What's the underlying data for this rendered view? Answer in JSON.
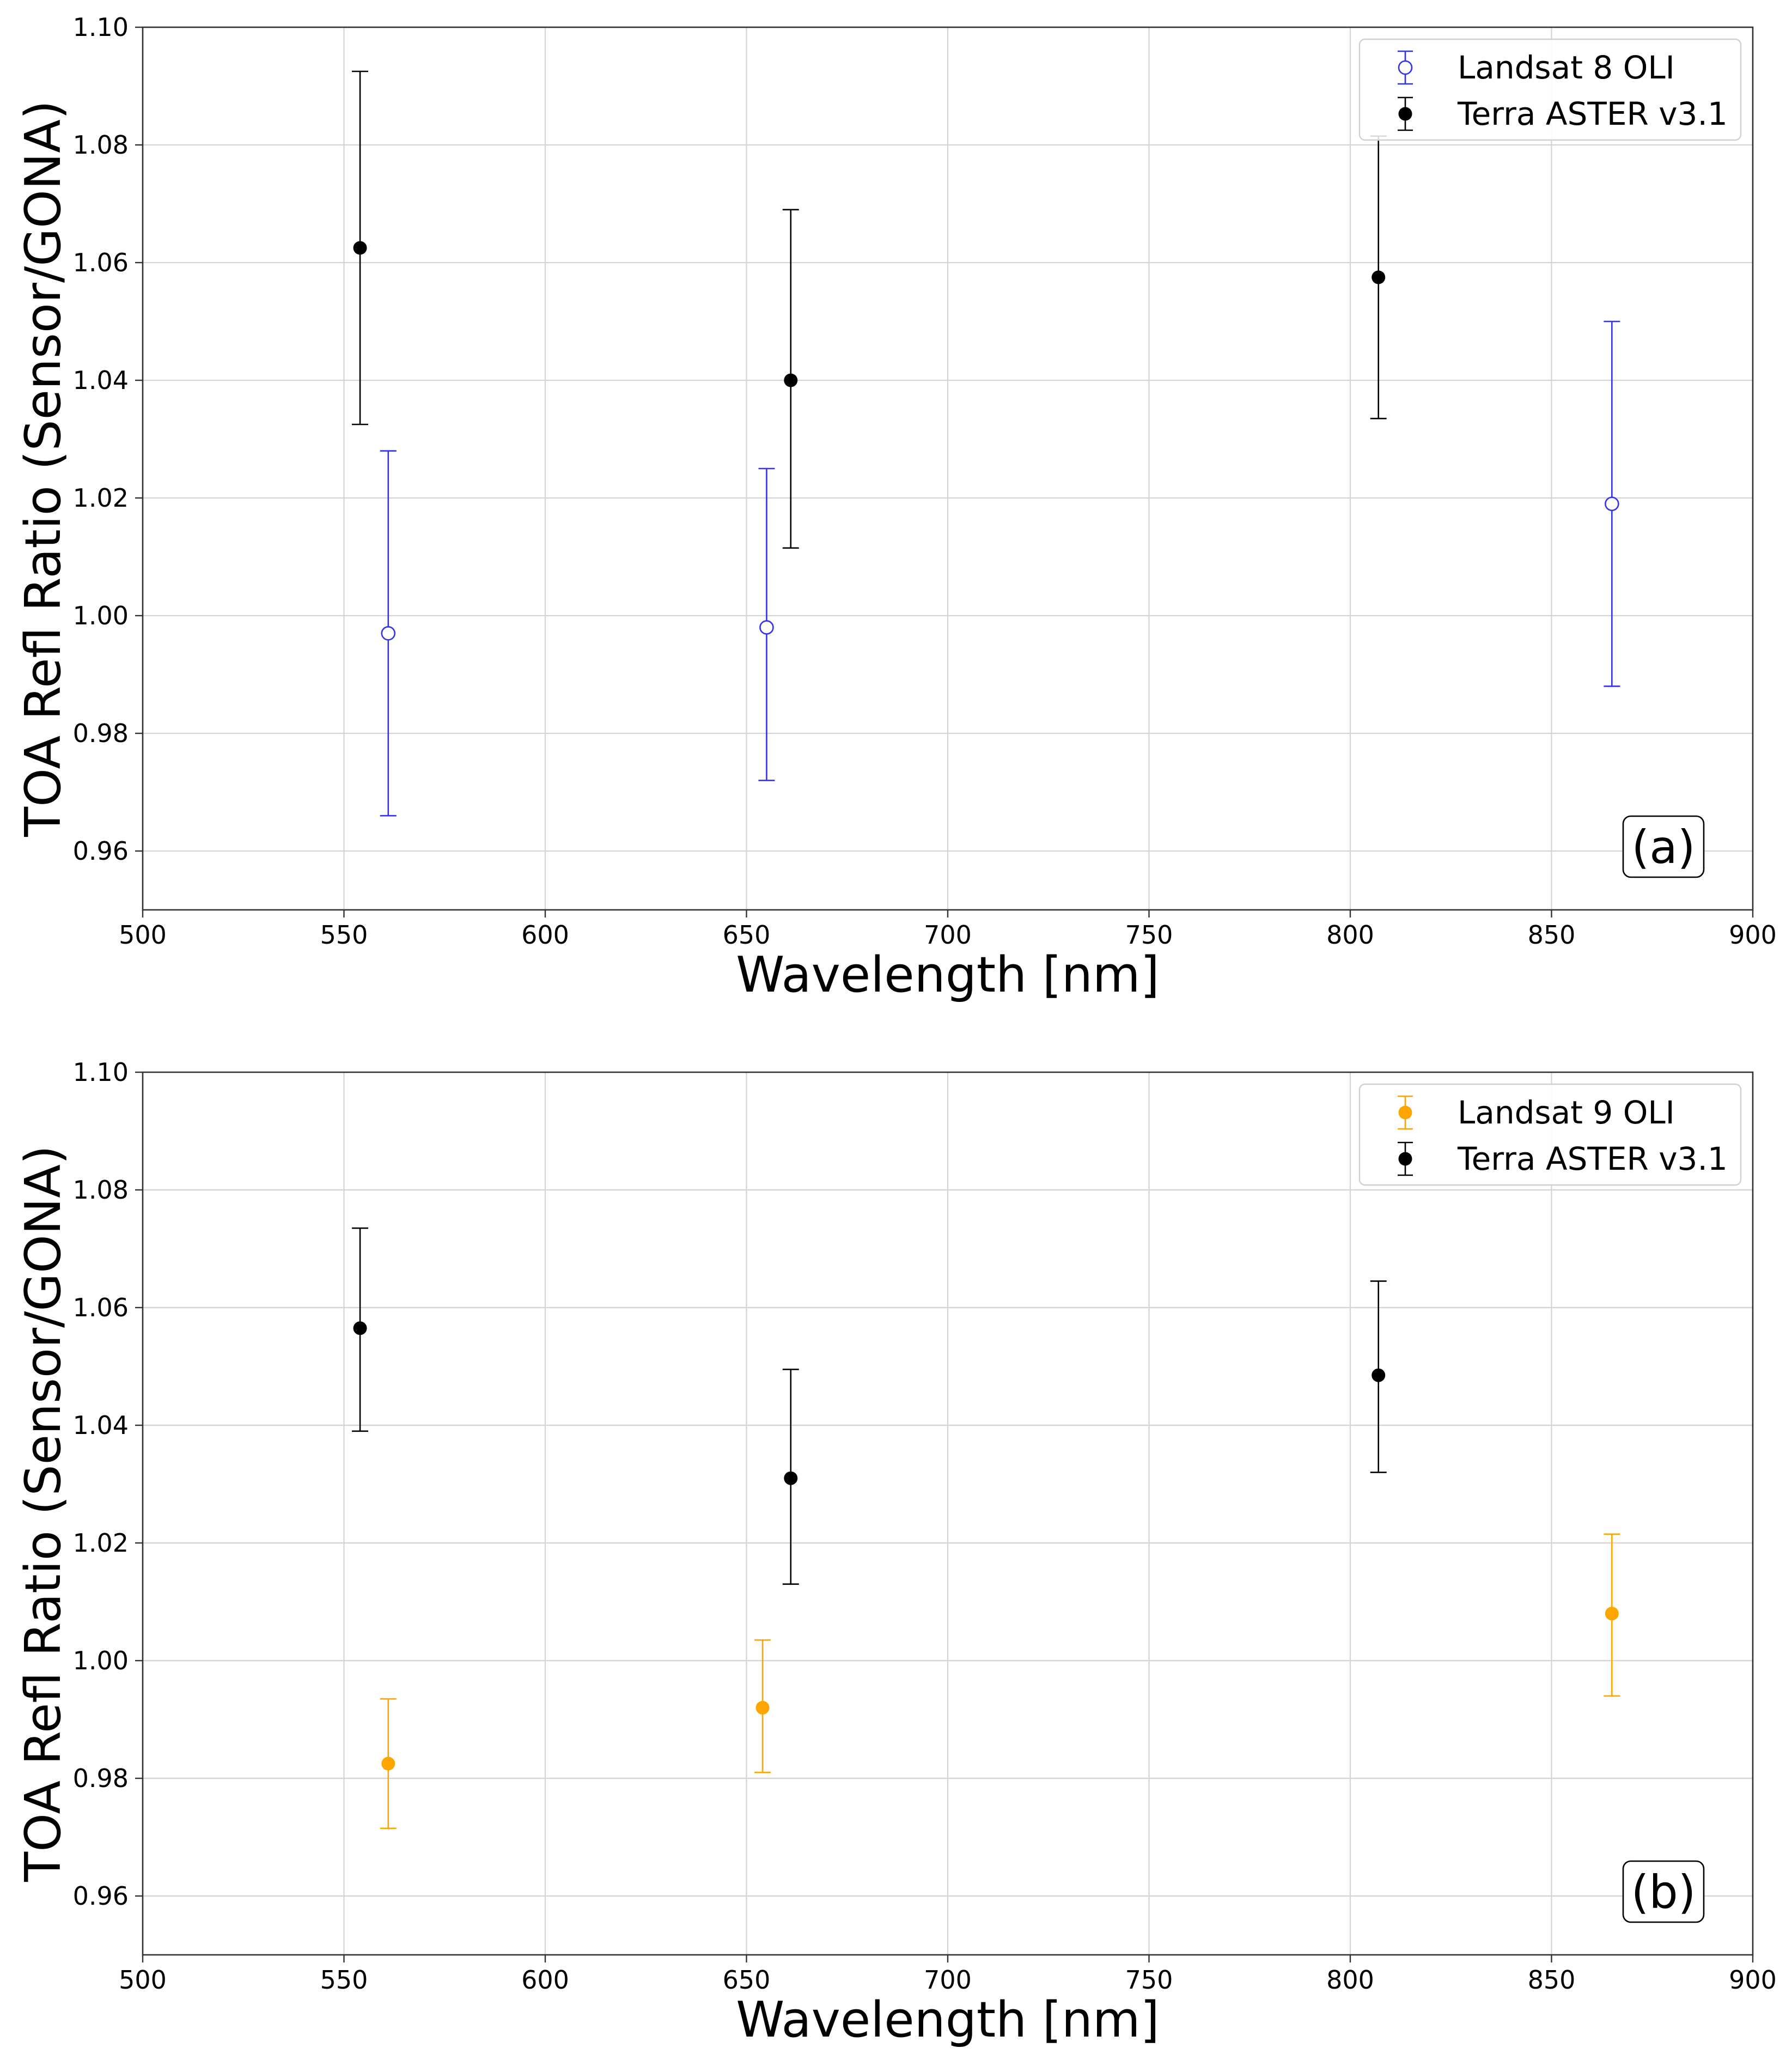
{
  "figure": {
    "name": "two-panel TOA reflectance ratio comparison"
  },
  "chart_data": [
    {
      "type": "scatter",
      "panel_label": "(a)",
      "xlabel": "Wavelength [nm]",
      "ylabel": "TOA Refl Ratio (Sensor/GONA)",
      "xlim": [
        500,
        900
      ],
      "ylim": [
        0.95,
        1.1
      ],
      "xticks": [
        500,
        550,
        600,
        650,
        700,
        750,
        800,
        850,
        900
      ],
      "yticks": [
        0.96,
        0.98,
        1.0,
        1.02,
        1.04,
        1.06,
        1.08,
        1.1
      ],
      "ytick_labels": [
        "0.96",
        "0.98",
        "1.00",
        "1.02",
        "1.04",
        "1.06",
        "1.08",
        "1.10"
      ],
      "grid": true,
      "legend_position": "top-right",
      "series": [
        {
          "name": "Landsat 8 OLI",
          "color": "#3333ee",
          "marker": "open-circle",
          "points": [
            {
              "x": 561,
              "y": 0.997,
              "lower": 0.966,
              "upper": 1.028
            },
            {
              "x": 655,
              "y": 0.998,
              "lower": 0.972,
              "upper": 1.025
            },
            {
              "x": 865,
              "y": 1.019,
              "lower": 0.988,
              "upper": 1.05
            }
          ]
        },
        {
          "name": "Terra ASTER v3.1",
          "color": "#000000",
          "marker": "filled-circle",
          "points": [
            {
              "x": 554,
              "y": 1.0625,
              "lower": 1.0325,
              "upper": 1.0925
            },
            {
              "x": 661,
              "y": 1.04,
              "lower": 1.0115,
              "upper": 1.069
            },
            {
              "x": 807,
              "y": 1.0575,
              "lower": 1.0335,
              "upper": 1.0815
            }
          ]
        }
      ]
    },
    {
      "type": "scatter",
      "panel_label": "(b)",
      "xlabel": "Wavelength [nm]",
      "ylabel": "TOA Refl Ratio (Sensor/GONA)",
      "xlim": [
        500,
        900
      ],
      "ylim": [
        0.95,
        1.1
      ],
      "xticks": [
        500,
        550,
        600,
        650,
        700,
        750,
        800,
        850,
        900
      ],
      "yticks": [
        0.96,
        0.98,
        1.0,
        1.02,
        1.04,
        1.06,
        1.08,
        1.1
      ],
      "ytick_labels": [
        "0.96",
        "0.98",
        "1.00",
        "1.02",
        "1.04",
        "1.06",
        "1.08",
        "1.10"
      ],
      "grid": true,
      "legend_position": "top-right",
      "series": [
        {
          "name": "Landsat 9 OLI",
          "color": "#ffa500",
          "marker": "filled-circle",
          "points": [
            {
              "x": 561,
              "y": 0.9825,
              "lower": 0.9715,
              "upper": 0.9935
            },
            {
              "x": 654,
              "y": 0.992,
              "lower": 0.981,
              "upper": 1.0035
            },
            {
              "x": 865,
              "y": 1.008,
              "lower": 0.994,
              "upper": 1.0215
            }
          ]
        },
        {
          "name": "Terra ASTER v3.1",
          "color": "#000000",
          "marker": "filled-circle",
          "points": [
            {
              "x": 554,
              "y": 1.0565,
              "lower": 1.039,
              "upper": 1.0735
            },
            {
              "x": 661,
              "y": 1.031,
              "lower": 1.013,
              "upper": 1.0495
            },
            {
              "x": 807,
              "y": 1.0485,
              "lower": 1.032,
              "upper": 1.0645
            }
          ]
        }
      ]
    }
  ]
}
